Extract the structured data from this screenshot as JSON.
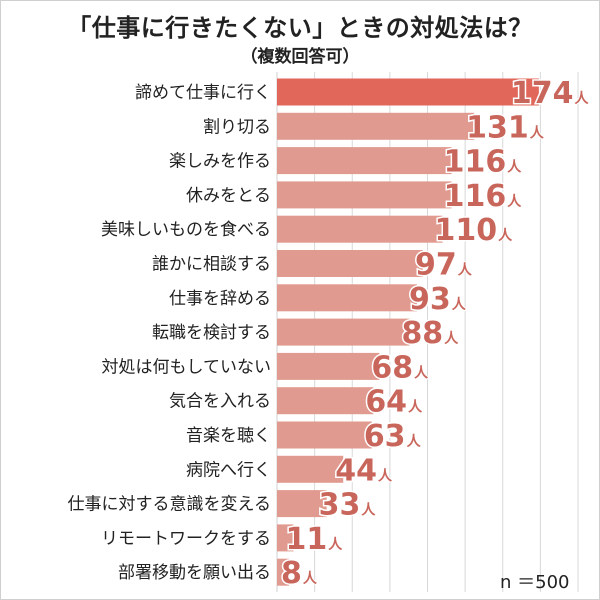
{
  "chart_data": {
    "type": "bar",
    "orientation": "horizontal",
    "title": "「仕事に行きたくない」ときの対処法は？",
    "subtitle": "（複数回答可）",
    "categories": [
      "諦めて仕事に行く",
      "割り切る",
      "楽しみを作る",
      "休みをとる",
      "美味しいものを食べる",
      "誰かに相談する",
      "仕事を辞める",
      "転職を検討する",
      "対処は何もしていない",
      "気合を入れる",
      "音楽を聴く",
      "病院へ行く",
      "仕事に対する意識を変える",
      "リモートワークをする",
      "部署移動を願い出る"
    ],
    "values": [
      174,
      131,
      116,
      116,
      110,
      97,
      93,
      88,
      68,
      64,
      63,
      44,
      33,
      11,
      8
    ],
    "value_labels": [
      "174",
      "131",
      "116",
      "116",
      "110",
      "97",
      "93",
      "88",
      "68",
      "64",
      "63",
      "44",
      "33",
      "11",
      "8"
    ],
    "unit": "人",
    "xlim": [
      0,
      200
    ],
    "grid": true,
    "legend": "none",
    "note": "n ＝500",
    "colors": {
      "highlight_bar": "#e0675a",
      "bar": "#e09a8f",
      "value_text": "#c9665b",
      "grid": "#d8d8d8",
      "frame": "#cfcfcf"
    }
  }
}
